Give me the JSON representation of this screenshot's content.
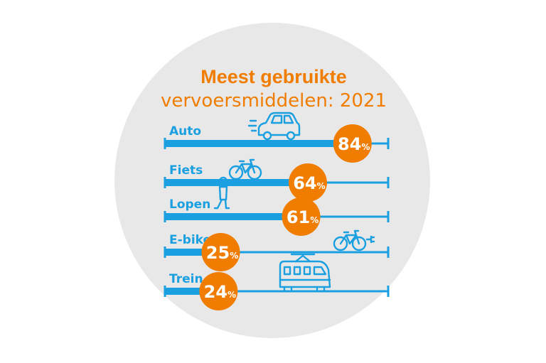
{
  "chart_data": {
    "type": "bar",
    "title": "Meest gebruikte",
    "subtitle": "vervoersmiddelen: 2021",
    "categories": [
      "Auto",
      "Fiets",
      "Lopen",
      "E-bike",
      "Trein"
    ],
    "values": [
      84,
      64,
      61,
      25,
      24
    ],
    "value_suffix": "%",
    "icons": [
      "car-icon",
      "bicycle-icon",
      "walking-person-icon",
      "e-bike-icon",
      "train-icon"
    ],
    "xlim": [
      0,
      100
    ]
  },
  "colors": {
    "background_circle": "#e8e8e8",
    "title": "#f07d00",
    "bar": "#1a9fe0",
    "label": "#1a9fe0",
    "bubble": "#f07d00",
    "bubble_text": "#ffffff"
  }
}
